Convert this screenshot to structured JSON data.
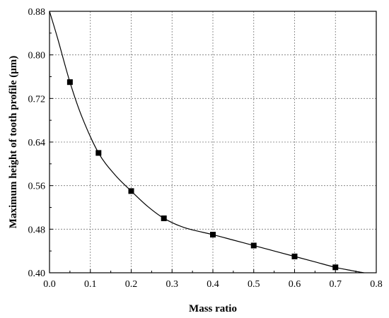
{
  "chart_data": {
    "type": "line",
    "xlabel": "Mass ratio",
    "ylabel": "Maximum height of tooth profile (μm)",
    "xlim": [
      0.0,
      0.8
    ],
    "ylim": [
      0.4,
      0.88
    ],
    "grid": true,
    "x_ticks": [
      0.0,
      0.1,
      0.2,
      0.3,
      0.4,
      0.5,
      0.6,
      0.7,
      0.8
    ],
    "x_tick_labels": [
      "0.0",
      "0.1",
      "0.2",
      "0.3",
      "0.4",
      "0.5",
      "0.6",
      "0.7",
      "0.8"
    ],
    "y_ticks": [
      0.4,
      0.48,
      0.56,
      0.64,
      0.72,
      0.8,
      0.88
    ],
    "y_tick_labels": [
      "0.40",
      "0.48",
      "0.56",
      "0.64",
      "0.72",
      "0.80",
      "0.88"
    ],
    "series": [
      {
        "marker": "square",
        "color": "#000000",
        "points": [
          {
            "x": 0.05,
            "y": 0.75
          },
          {
            "x": 0.12,
            "y": 0.62
          },
          {
            "x": 0.2,
            "y": 0.55
          },
          {
            "x": 0.28,
            "y": 0.5
          },
          {
            "x": 0.4,
            "y": 0.47
          },
          {
            "x": 0.5,
            "y": 0.45
          },
          {
            "x": 0.6,
            "y": 0.43
          },
          {
            "x": 0.7,
            "y": 0.41
          }
        ],
        "fit_curve": [
          {
            "x": 0.0,
            "y": 0.88
          },
          {
            "x": 0.02,
            "y": 0.83
          },
          {
            "x": 0.05,
            "y": 0.75
          },
          {
            "x": 0.08,
            "y": 0.685
          },
          {
            "x": 0.12,
            "y": 0.62
          },
          {
            "x": 0.16,
            "y": 0.58
          },
          {
            "x": 0.2,
            "y": 0.55
          },
          {
            "x": 0.24,
            "y": 0.522
          },
          {
            "x": 0.28,
            "y": 0.5
          },
          {
            "x": 0.33,
            "y": 0.483
          },
          {
            "x": 0.4,
            "y": 0.47
          },
          {
            "x": 0.45,
            "y": 0.46
          },
          {
            "x": 0.5,
            "y": 0.45
          },
          {
            "x": 0.55,
            "y": 0.44
          },
          {
            "x": 0.6,
            "y": 0.43
          },
          {
            "x": 0.65,
            "y": 0.42
          },
          {
            "x": 0.7,
            "y": 0.41
          },
          {
            "x": 0.74,
            "y": 0.404
          },
          {
            "x": 0.77,
            "y": 0.4
          }
        ]
      }
    ]
  }
}
